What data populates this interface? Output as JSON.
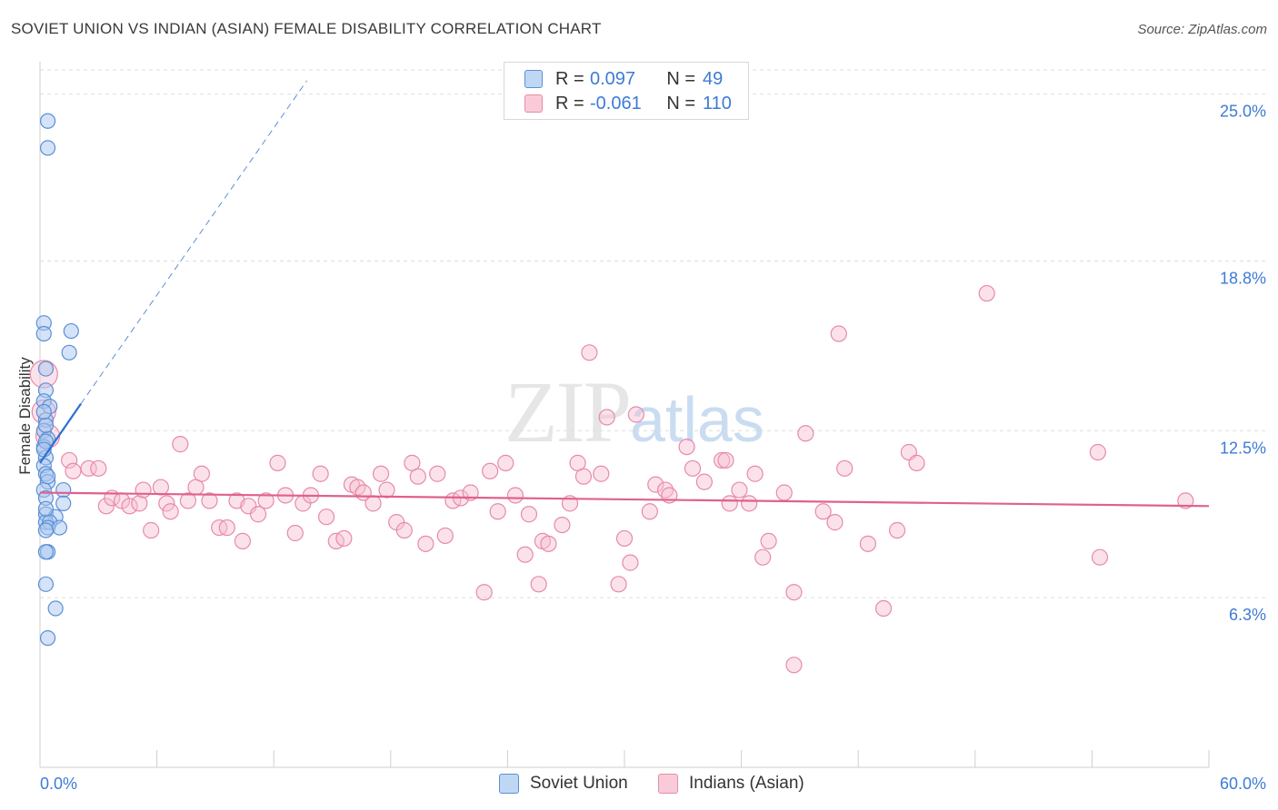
{
  "title": "SOVIET UNION VS INDIAN (ASIAN) FEMALE DISABILITY CORRELATION CHART",
  "source": "Source: ZipAtlas.com",
  "watermark": {
    "zip": "ZIP",
    "atlas": "atlas"
  },
  "legend": {
    "rows": [
      {
        "r_label": "R =",
        "r_value": "0.097",
        "n_label": "N =",
        "n_value": "49"
      },
      {
        "r_label": "R =",
        "r_value": "-0.061",
        "n_label": "N =",
        "n_value": "110"
      }
    ]
  },
  "bottom_legend": {
    "series1": "Soviet Union",
    "series2": "Indians (Asian)"
  },
  "colors": {
    "blue_fill": "#aac8ef",
    "blue_stroke": "#5b8fd6",
    "blue_line": "#2f6fd0",
    "pink_fill": "#f7bfd0",
    "pink_stroke": "#e88aa8",
    "pink_line": "#e06090",
    "grid": "#dedede",
    "tick_text": "#3d7bd6"
  },
  "chart_data": {
    "type": "scatter",
    "title": "SOVIET UNION VS INDIAN (ASIAN) FEMALE DISABILITY CORRELATION CHART",
    "xlabel": "",
    "ylabel": "Female Disability",
    "xlim": [
      0,
      60
    ],
    "ylim": [
      0,
      26.2
    ],
    "x_tick_labels": [
      "0.0%",
      "60.0%"
    ],
    "y_ticks": [
      6.3,
      12.5,
      18.8,
      25.0
    ],
    "y_tick_labels": [
      "6.3%",
      "12.5%",
      "18.8%",
      "25.0%"
    ],
    "series": [
      {
        "name": "Soviet Union",
        "r": 0.097,
        "n": 49,
        "trend": {
          "x": [
            0,
            2.1
          ],
          "y": [
            11.3,
            13.5
          ],
          "extended_to": [
            13.7,
            25.5
          ]
        },
        "points": [
          [
            0.4,
            24.0
          ],
          [
            0.4,
            23.0
          ],
          [
            0.2,
            16.5
          ],
          [
            0.2,
            16.1
          ],
          [
            1.6,
            16.2
          ],
          [
            1.5,
            15.4
          ],
          [
            0.3,
            14.8
          ],
          [
            0.3,
            14.0
          ],
          [
            0.2,
            13.6
          ],
          [
            0.5,
            13.4
          ],
          [
            0.3,
            12.9
          ],
          [
            0.2,
            12.5
          ],
          [
            0.4,
            12.2
          ],
          [
            0.2,
            11.9
          ],
          [
            0.3,
            11.5
          ],
          [
            0.2,
            11.2
          ],
          [
            0.3,
            10.9
          ],
          [
            0.4,
            10.6
          ],
          [
            0.2,
            10.3
          ],
          [
            1.2,
            10.3
          ],
          [
            0.3,
            10.0
          ],
          [
            1.2,
            9.8
          ],
          [
            0.3,
            9.4
          ],
          [
            0.8,
            9.3
          ],
          [
            0.3,
            9.1
          ],
          [
            0.5,
            9.1
          ],
          [
            0.4,
            8.9
          ],
          [
            1.0,
            8.9
          ],
          [
            0.3,
            8.8
          ],
          [
            0.4,
            8.0
          ],
          [
            0.3,
            8.0
          ],
          [
            0.3,
            6.8
          ],
          [
            0.8,
            5.9
          ],
          [
            0.4,
            4.8
          ],
          [
            0.3,
            12.1
          ],
          [
            0.2,
            11.8
          ],
          [
            0.3,
            12.7
          ],
          [
            0.2,
            13.2
          ],
          [
            0.4,
            10.8
          ],
          [
            0.3,
            9.6
          ]
        ]
      },
      {
        "name": "Indians (Asian)",
        "r": -0.061,
        "n": 110,
        "trend": {
          "x": [
            0,
            60
          ],
          "y": [
            10.2,
            9.7
          ]
        },
        "points": [
          [
            0.2,
            14.6
          ],
          [
            0.2,
            13.2
          ],
          [
            0.4,
            12.3
          ],
          [
            1.5,
            11.4
          ],
          [
            1.7,
            11.0
          ],
          [
            2.5,
            11.1
          ],
          [
            3.0,
            11.1
          ],
          [
            3.4,
            9.7
          ],
          [
            3.7,
            10.0
          ],
          [
            4.2,
            9.9
          ],
          [
            4.6,
            9.7
          ],
          [
            5.1,
            9.8
          ],
          [
            5.3,
            10.3
          ],
          [
            5.7,
            8.8
          ],
          [
            6.2,
            10.4
          ],
          [
            6.5,
            9.8
          ],
          [
            6.7,
            9.5
          ],
          [
            7.2,
            12.0
          ],
          [
            7.6,
            9.9
          ],
          [
            8.0,
            10.4
          ],
          [
            8.3,
            10.9
          ],
          [
            8.7,
            9.9
          ],
          [
            9.2,
            8.9
          ],
          [
            9.6,
            8.9
          ],
          [
            10.1,
            9.9
          ],
          [
            10.4,
            8.4
          ],
          [
            10.7,
            9.7
          ],
          [
            11.2,
            9.4
          ],
          [
            11.6,
            9.9
          ],
          [
            12.2,
            11.3
          ],
          [
            12.6,
            10.1
          ],
          [
            13.1,
            8.7
          ],
          [
            13.5,
            9.8
          ],
          [
            13.9,
            10.1
          ],
          [
            14.4,
            10.9
          ],
          [
            14.7,
            9.3
          ],
          [
            15.2,
            8.4
          ],
          [
            15.6,
            8.5
          ],
          [
            16.0,
            10.5
          ],
          [
            16.3,
            10.4
          ],
          [
            16.6,
            10.2
          ],
          [
            17.1,
            9.8
          ],
          [
            17.5,
            10.9
          ],
          [
            17.8,
            10.3
          ],
          [
            18.3,
            9.1
          ],
          [
            18.7,
            8.8
          ],
          [
            19.1,
            11.3
          ],
          [
            19.4,
            10.8
          ],
          [
            19.8,
            8.3
          ],
          [
            20.4,
            10.9
          ],
          [
            20.8,
            8.6
          ],
          [
            21.2,
            9.9
          ],
          [
            21.6,
            10.0
          ],
          [
            22.1,
            10.2
          ],
          [
            22.8,
            6.5
          ],
          [
            23.1,
            11.0
          ],
          [
            23.5,
            9.5
          ],
          [
            23.9,
            11.3
          ],
          [
            24.4,
            10.1
          ],
          [
            24.9,
            7.9
          ],
          [
            25.1,
            9.4
          ],
          [
            25.6,
            6.8
          ],
          [
            25.8,
            8.4
          ],
          [
            26.1,
            8.3
          ],
          [
            26.8,
            9.0
          ],
          [
            27.2,
            9.8
          ],
          [
            27.6,
            11.3
          ],
          [
            27.9,
            10.8
          ],
          [
            28.2,
            15.4
          ],
          [
            28.8,
            10.9
          ],
          [
            29.1,
            13.0
          ],
          [
            29.7,
            6.8
          ],
          [
            30.0,
            8.5
          ],
          [
            30.3,
            7.6
          ],
          [
            30.6,
            13.1
          ],
          [
            31.3,
            9.5
          ],
          [
            31.6,
            10.5
          ],
          [
            32.1,
            10.3
          ],
          [
            32.3,
            10.1
          ],
          [
            33.2,
            11.9
          ],
          [
            33.5,
            11.1
          ],
          [
            34.1,
            10.6
          ],
          [
            35.0,
            11.4
          ],
          [
            35.2,
            11.4
          ],
          [
            35.4,
            9.8
          ],
          [
            35.9,
            10.3
          ],
          [
            36.4,
            9.8
          ],
          [
            36.7,
            10.9
          ],
          [
            37.1,
            7.8
          ],
          [
            37.4,
            8.4
          ],
          [
            38.2,
            10.2
          ],
          [
            38.7,
            6.5
          ],
          [
            39.3,
            12.4
          ],
          [
            40.2,
            9.5
          ],
          [
            40.8,
            9.1
          ],
          [
            41.0,
            16.1
          ],
          [
            41.3,
            11.1
          ],
          [
            42.5,
            8.3
          ],
          [
            43.3,
            5.9
          ],
          [
            44.0,
            8.8
          ],
          [
            44.6,
            11.7
          ],
          [
            48.6,
            17.6
          ],
          [
            45.0,
            11.3
          ],
          [
            54.3,
            11.7
          ],
          [
            54.4,
            7.8
          ],
          [
            58.8,
            9.9
          ],
          [
            38.7,
            3.8
          ]
        ]
      }
    ]
  }
}
